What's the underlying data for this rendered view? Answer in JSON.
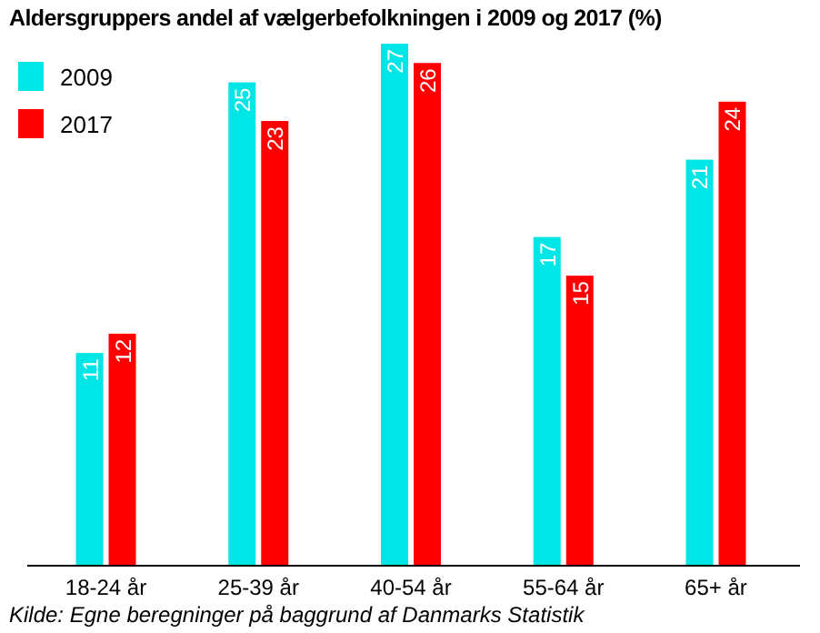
{
  "chart_data": {
    "type": "bar",
    "title": "Aldersgruppers andel af vælgerbefolkningen i 2009 og 2017 (%)",
    "categories": [
      "18-24 år",
      "25-39 år",
      "40-54 år",
      "55-64 år",
      "65+ år"
    ],
    "series": [
      {
        "name": "2009",
        "color": "#00e5e5",
        "values": [
          11,
          25,
          27,
          17,
          21
        ]
      },
      {
        "name": "2017",
        "color": "#ff0000",
        "values": [
          12,
          23,
          26,
          15,
          24
        ]
      }
    ],
    "data_labels": true,
    "legend": "top left",
    "annotations": [
      "Kilde: Egne beregninger på baggrund af Danmarks Statistik"
    ]
  }
}
